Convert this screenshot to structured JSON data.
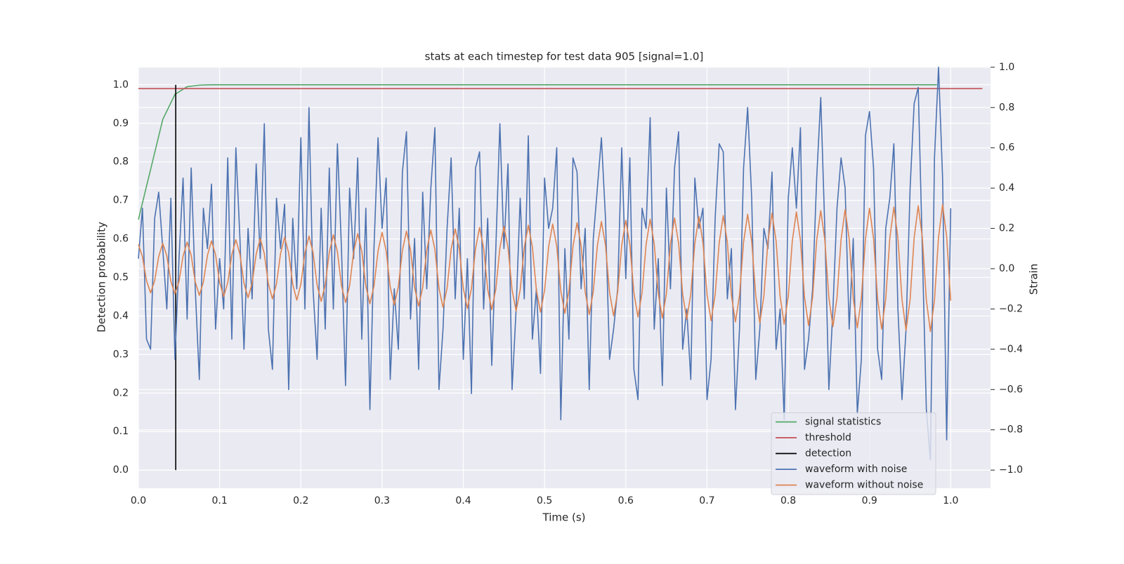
{
  "chart_data": {
    "type": "line",
    "title": "stats at each timestep for test data 905 [signal=1.0]",
    "xlabel": "Time (s)",
    "ylabel": "Detection probability",
    "y2label": "Strain",
    "xlim": [
      0,
      1.049
    ],
    "ylim": [
      -0.047,
      1.047
    ],
    "y2lim": [
      -1.09,
      1.003
    ],
    "xticks": [
      {
        "value": 0,
        "label": "0.0"
      },
      0.1,
      0.2,
      0.3,
      0.4,
      0.5,
      0.6,
      0.7,
      0.8,
      0.9,
      {
        "value": 1,
        "label": "1.0"
      }
    ],
    "yticks": [
      {
        "value": 0,
        "label": "0.0"
      },
      0.1,
      0.2,
      0.3,
      0.4,
      0.5,
      0.6,
      0.7,
      0.8,
      0.9,
      {
        "value": 1,
        "label": "1.0"
      }
    ],
    "y2ticks": [
      {
        "value": -1,
        "label": "−1.0"
      },
      {
        "value": -0.8,
        "label": "−0.8"
      },
      {
        "value": -0.6,
        "label": "−0.6"
      },
      {
        "value": -0.4,
        "label": "−0.4"
      },
      {
        "value": -0.2,
        "label": "−0.2"
      },
      {
        "value": 0,
        "label": "0.0"
      },
      0.2,
      0.4,
      0.6,
      0.8,
      {
        "value": 1,
        "label": "1.0"
      }
    ],
    "grid": true,
    "legend": "lower right",
    "x": [
      0,
      0.005,
      0.01,
      0.015,
      0.02,
      0.025,
      0.03,
      0.035,
      0.04,
      0.045,
      0.05,
      0.055,
      0.06,
      0.065,
      0.07,
      0.075,
      0.08,
      0.085,
      0.09,
      0.095,
      0.1,
      0.105,
      0.11,
      0.115,
      0.12,
      0.125,
      0.13,
      0.135,
      0.14,
      0.145,
      0.15,
      0.155,
      0.16,
      0.165,
      0.17,
      0.175,
      0.18,
      0.185,
      0.19,
      0.195,
      0.2,
      0.205,
      0.21,
      0.215,
      0.22,
      0.225,
      0.23,
      0.235,
      0.24,
      0.245,
      0.25,
      0.255,
      0.26,
      0.265,
      0.27,
      0.275,
      0.28,
      0.285,
      0.29,
      0.295,
      0.3,
      0.305,
      0.31,
      0.315,
      0.32,
      0.325,
      0.33,
      0.335,
      0.34,
      0.345,
      0.35,
      0.355,
      0.36,
      0.365,
      0.37,
      0.375,
      0.38,
      0.385,
      0.39,
      0.395,
      0.4,
      0.405,
      0.41,
      0.415,
      0.42,
      0.425,
      0.43,
      0.435,
      0.44,
      0.445,
      0.45,
      0.455,
      0.46,
      0.465,
      0.47,
      0.475,
      0.48,
      0.485,
      0.49,
      0.495,
      0.5,
      0.505,
      0.51,
      0.515,
      0.52,
      0.525,
      0.53,
      0.535,
      0.54,
      0.545,
      0.55,
      0.555,
      0.56,
      0.565,
      0.57,
      0.575,
      0.58,
      0.585,
      0.59,
      0.595,
      0.6,
      0.605,
      0.61,
      0.615,
      0.62,
      0.625,
      0.63,
      0.635,
      0.64,
      0.645,
      0.65,
      0.655,
      0.66,
      0.665,
      0.67,
      0.675,
      0.68,
      0.685,
      0.69,
      0.695,
      0.7,
      0.705,
      0.71,
      0.715,
      0.72,
      0.725,
      0.73,
      0.735,
      0.74,
      0.745,
      0.75,
      0.755,
      0.76,
      0.765,
      0.77,
      0.775,
      0.78,
      0.785,
      0.79,
      0.795,
      0.8,
      0.805,
      0.81,
      0.815,
      0.82,
      0.825,
      0.83,
      0.835,
      0.84,
      0.845,
      0.85,
      0.855,
      0.86,
      0.865,
      0.87,
      0.875,
      0.88,
      0.885,
      0.89,
      0.895,
      0.9,
      0.905,
      0.91,
      0.915,
      0.92,
      0.925,
      0.93,
      0.935,
      0.94,
      0.945,
      0.95,
      0.955,
      0.96,
      0.965,
      0.97,
      0.975,
      0.98,
      0.985,
      0.99,
      0.995,
      1
    ],
    "series": [
      {
        "name": "signal statistics",
        "color": "#55a868",
        "x": [
          0,
          0.015,
          0.03,
          0.045,
          0.06,
          0.075,
          0.09,
          0.983
        ],
        "values": [
          0.65,
          0.78,
          0.91,
          0.975,
          0.995,
          0.999,
          1.0,
          1.0
        ]
      },
      {
        "name": "threshold",
        "color": "#c44e52",
        "x": [
          0,
          1.039
        ],
        "values": [
          0.99,
          0.99
        ]
      },
      {
        "name": "detection",
        "color": "#000000",
        "x": [
          0.046,
          0.046
        ],
        "values": [
          0,
          1
        ]
      },
      {
        "name": "waveform with noise",
        "color": "#4c72b0",
        "axis": "y2",
        "values": [
          0.05,
          0.3,
          -0.35,
          -0.4,
          0.25,
          0.38,
          0.1,
          -0.2,
          0.35,
          -0.45,
          0.05,
          0.45,
          -0.25,
          0.5,
          -0.1,
          -0.55,
          0.3,
          0.1,
          0.42,
          -0.3,
          0.05,
          -0.2,
          0.55,
          -0.35,
          0.6,
          0.15,
          -0.4,
          0.2,
          -0.15,
          0.52,
          0.05,
          0.72,
          -0.3,
          -0.5,
          0.35,
          0.1,
          0.32,
          -0.6,
          0.25,
          -0.1,
          0.65,
          -0.2,
          0.8,
          -0.1,
          -0.45,
          0.3,
          -0.3,
          0.5,
          -0.2,
          0.62,
          0.1,
          -0.58,
          0.4,
          0.05,
          0.55,
          -0.35,
          0.3,
          -0.7,
          0.1,
          0.65,
          0.2,
          0.45,
          -0.55,
          -0.1,
          -0.4,
          0.48,
          0.68,
          -0.25,
          0.15,
          -0.5,
          0.38,
          -0.1,
          0.4,
          0.7,
          -0.6,
          -0.3,
          0.2,
          0.55,
          -0.15,
          0.3,
          -0.45,
          0.05,
          -0.62,
          0.5,
          0.58,
          -0.2,
          0.25,
          -0.48,
          0.1,
          0.72,
          0.1,
          0.52,
          -0.6,
          -0.2,
          0.35,
          -0.15,
          0.66,
          -0.35,
          -0.1,
          -0.52,
          0.45,
          0.2,
          0.3,
          0.6,
          -0.75,
          0.1,
          -0.35,
          0.55,
          0.48,
          -0.1,
          0.2,
          -0.6,
          0.15,
          0.4,
          0.65,
          0.25,
          -0.45,
          -0.3,
          -0.1,
          0.6,
          -0.05,
          0.55,
          -0.5,
          -0.65,
          0.3,
          0.2,
          0.75,
          -0.3,
          0.05,
          -0.58,
          0.4,
          -0.1,
          0.5,
          0.68,
          -0.4,
          -0.2,
          -0.55,
          0.45,
          0.2,
          0.3,
          -0.65,
          -0.45,
          0.25,
          0.62,
          0.58,
          -0.15,
          0.1,
          -0.7,
          -0.3,
          0.5,
          0.8,
          0.35,
          -0.55,
          -0.3,
          0.2,
          0.1,
          0.48,
          -0.4,
          -0.2,
          -0.75,
          0.35,
          0.6,
          0.3,
          0.7,
          -0.5,
          -0.35,
          -0.1,
          0.45,
          0.85,
          0.2,
          -0.6,
          -0.2,
          0.3,
          0.55,
          0.4,
          -0.3,
          0.15,
          -0.72,
          -0.45,
          0.66,
          0.78,
          0.5,
          -0.4,
          -0.55,
          0.2,
          0.35,
          0.62,
          -0.2,
          -0.65,
          -0.3,
          0.4,
          0.82,
          0.9,
          0.1,
          -0.7,
          -0.95,
          0.55,
          1.0,
          0.45,
          -0.85,
          0.3
        ]
      },
      {
        "name": "waveform without noise",
        "color": "#dd8452",
        "axis": "y2",
        "values": [
          0.12,
          0.06,
          -0.06,
          -0.12,
          -0.06,
          0.06,
          0.126,
          0.063,
          -0.063,
          -0.126,
          -0.063,
          0.063,
          0.132,
          0.066,
          -0.066,
          -0.132,
          -0.066,
          0.066,
          0.138,
          0.069,
          -0.069,
          -0.138,
          -0.069,
          0.069,
          0.144,
          0.072,
          -0.072,
          -0.144,
          -0.072,
          0.072,
          0.15,
          0.075,
          -0.075,
          -0.15,
          -0.075,
          0.075,
          0.156,
          0.078,
          -0.078,
          -0.156,
          -0.078,
          0.078,
          0.162,
          0.081,
          -0.081,
          -0.162,
          -0.081,
          0.081,
          0.168,
          0.084,
          -0.084,
          -0.168,
          -0.084,
          0.084,
          0.174,
          0.087,
          -0.087,
          -0.174,
          -0.087,
          0.087,
          0.18,
          0.09,
          -0.09,
          -0.18,
          -0.09,
          0.09,
          0.186,
          0.093,
          -0.093,
          -0.186,
          -0.093,
          0.093,
          0.192,
          0.096,
          -0.096,
          -0.192,
          -0.096,
          0.096,
          0.198,
          0.099,
          -0.099,
          -0.198,
          -0.099,
          0.099,
          0.204,
          0.102,
          -0.102,
          -0.204,
          -0.102,
          0.102,
          0.21,
          0.105,
          -0.105,
          -0.21,
          -0.105,
          0.105,
          0.216,
          0.108,
          -0.108,
          -0.216,
          -0.108,
          0.108,
          0.222,
          0.111,
          -0.111,
          -0.222,
          -0.111,
          0.111,
          0.228,
          0.114,
          -0.114,
          -0.228,
          -0.114,
          0.114,
          0.234,
          0.117,
          -0.117,
          -0.234,
          -0.117,
          0.117,
          0.24,
          0.12,
          -0.12,
          -0.24,
          -0.12,
          0.12,
          0.246,
          0.123,
          -0.123,
          -0.246,
          -0.123,
          0.123,
          0.252,
          0.126,
          -0.126,
          -0.252,
          -0.126,
          0.126,
          0.258,
          0.129,
          -0.129,
          -0.258,
          -0.129,
          0.129,
          0.264,
          0.132,
          -0.132,
          -0.264,
          -0.132,
          0.132,
          0.27,
          0.135,
          -0.135,
          -0.27,
          -0.135,
          0.135,
          0.276,
          0.138,
          -0.138,
          -0.276,
          -0.138,
          0.138,
          0.282,
          0.141,
          -0.141,
          -0.282,
          -0.141,
          0.141,
          0.288,
          0.144,
          -0.144,
          -0.288,
          -0.144,
          0.144,
          0.294,
          0.147,
          -0.147,
          -0.294,
          -0.147,
          0.147,
          0.3,
          0.15,
          -0.15,
          -0.3,
          -0.15,
          0.15,
          0.306,
          0.153,
          -0.153,
          -0.306,
          -0.153,
          0.153,
          0.312,
          0.156,
          -0.156,
          -0.312,
          -0.156,
          0.156,
          0.318,
          0.159,
          -0.159
        ]
      }
    ]
  }
}
